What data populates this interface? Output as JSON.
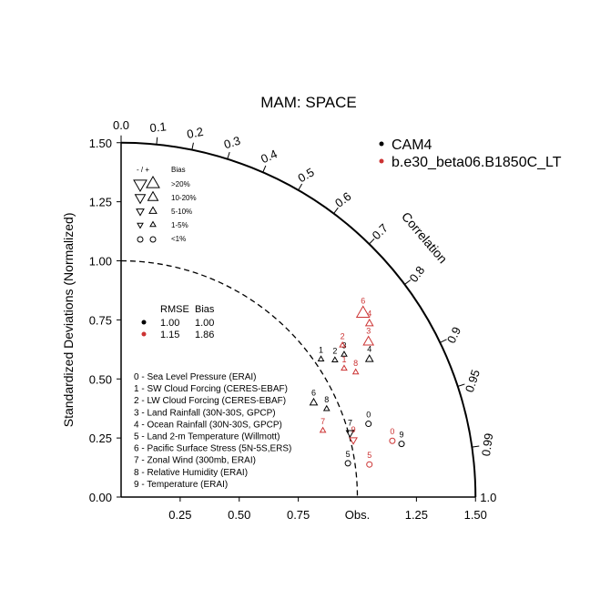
{
  "chart_data": {
    "type": "scatter",
    "title": "MAM: SPACE",
    "ylabel": "Standardized Deviations (Normalized)",
    "correlation_label": "Correlation",
    "obs_label": "Obs.",
    "ylim": [
      0,
      1.5
    ],
    "xlim": [
      0,
      1.5
    ],
    "x_ticks": [
      0.25,
      0.5,
      0.75,
      1.25,
      1.5
    ],
    "x_tick_labels": [
      "0.25",
      "0.50",
      "0.75",
      "1.25",
      "1.50"
    ],
    "y_ticks": [
      0.0,
      0.25,
      0.5,
      0.75,
      1.0,
      1.25,
      1.5
    ],
    "y_tick_labels": [
      "0.00",
      "0.25",
      "0.50",
      "0.75",
      "1.00",
      "1.25",
      "1.50"
    ],
    "arc_end_label": "1.0",
    "correlation_ticks": [
      0.0,
      0.1,
      0.2,
      0.3,
      0.4,
      0.5,
      0.6,
      0.7,
      0.8,
      0.9,
      0.95,
      0.99
    ],
    "correlation_tick_labels": [
      "0.0",
      "0.1",
      "0.2",
      "0.3",
      "0.4",
      "0.5",
      "0.6",
      "0.7",
      "0.8",
      "0.9",
      "0.95",
      "0.99"
    ],
    "reference_arc_radius": 1.0,
    "legend": {
      "series": [
        {
          "name": "CAM4",
          "color": "#000000"
        },
        {
          "name": "b.e30_beta06.B1850C_LT",
          "color": "#cc3333"
        }
      ],
      "bias_header_a": "- / +",
      "bias_header_b": "Bias",
      "bias_rows": [
        {
          "label": ">20%",
          "size": 5
        },
        {
          "label": "10-20%",
          "size": 4
        },
        {
          "label": "5-10%",
          "size": 3
        },
        {
          "label": "1-5%",
          "size": 2
        },
        {
          "label": "<1%",
          "size": 0
        }
      ],
      "rmse_header": "RMSE",
      "bias_col_header": "Bias",
      "summary": [
        {
          "color": "#000000",
          "rmse": "1.00",
          "bias": "1.00"
        },
        {
          "color": "#cc3333",
          "rmse": "1.15",
          "bias": "1.86"
        }
      ]
    },
    "variables": [
      "0 - Sea Level Pressure (ERAI)",
      "1 - SW Cloud Forcing (CERES-EBAF)",
      "2 - LW Cloud Forcing (CERES-EBAF)",
      "3 - Land Rainfall (30N-30S, GPCP)",
      "4 - Ocean Rainfall (30N-30S, GPCP)",
      "5 - Land 2-m Temperature (Willmott)",
      "6 - Pacific Surface Stress (5N-5S,ERS)",
      "7 - Zonal Wind (300mb, ERAI)",
      "8 - Relative Humidity (ERAI)",
      "9 - Temperature (ERAI)"
    ],
    "series": [
      {
        "name": "CAM4",
        "color": "#000000",
        "points": [
          {
            "id": "0",
            "x": 1.047,
            "y": 0.31,
            "marker": "circle",
            "size": 0
          },
          {
            "id": "1",
            "x": 0.846,
            "y": 0.583,
            "marker": "tri-up",
            "size": 2
          },
          {
            "id": "2",
            "x": 0.905,
            "y": 0.579,
            "marker": "tri-up",
            "size": 2
          },
          {
            "id": "3",
            "x": 0.944,
            "y": 0.603,
            "marker": "tri-up",
            "size": 2
          },
          {
            "id": "4",
            "x": 1.051,
            "y": 0.583,
            "marker": "tri-up",
            "size": 3
          },
          {
            "id": "5",
            "x": 0.96,
            "y": 0.143,
            "marker": "circle",
            "size": 0
          },
          {
            "id": "6",
            "x": 0.815,
            "y": 0.399,
            "marker": "tri-up",
            "size": 3
          },
          {
            "id": "7",
            "x": 0.969,
            "y": 0.272,
            "marker": "tri-down",
            "size": 3
          },
          {
            "id": "8",
            "x": 0.87,
            "y": 0.373,
            "marker": "tri-up",
            "size": 2
          },
          {
            "id": "9",
            "x": 1.187,
            "y": 0.225,
            "marker": "circle",
            "size": 0
          }
        ]
      },
      {
        "name": "b.e30_beta06.B1850C_LT",
        "color": "#cc3333",
        "points": [
          {
            "id": "0",
            "x": 1.148,
            "y": 0.238,
            "marker": "circle",
            "size": 0
          },
          {
            "id": "1",
            "x": 0.944,
            "y": 0.544,
            "marker": "tri-up",
            "size": 2
          },
          {
            "id": "2",
            "x": 0.937,
            "y": 0.642,
            "marker": "tri-up",
            "size": 2
          },
          {
            "id": "3",
            "x": 1.047,
            "y": 0.656,
            "marker": "tri-up",
            "size": 4
          },
          {
            "id": "4",
            "x": 1.051,
            "y": 0.734,
            "marker": "tri-up",
            "size": 3
          },
          {
            "id": "5",
            "x": 1.051,
            "y": 0.138,
            "marker": "circle",
            "size": 0
          },
          {
            "id": "6",
            "x": 1.024,
            "y": 0.777,
            "marker": "tri-up",
            "size": 5
          },
          {
            "id": "7",
            "x": 0.854,
            "y": 0.281,
            "marker": "tri-up",
            "size": 2
          },
          {
            "id": "8",
            "x": 0.993,
            "y": 0.528,
            "marker": "tri-up",
            "size": 2
          },
          {
            "id": "9",
            "x": 0.983,
            "y": 0.242,
            "marker": "tri-down",
            "size": 3
          }
        ]
      }
    ]
  }
}
